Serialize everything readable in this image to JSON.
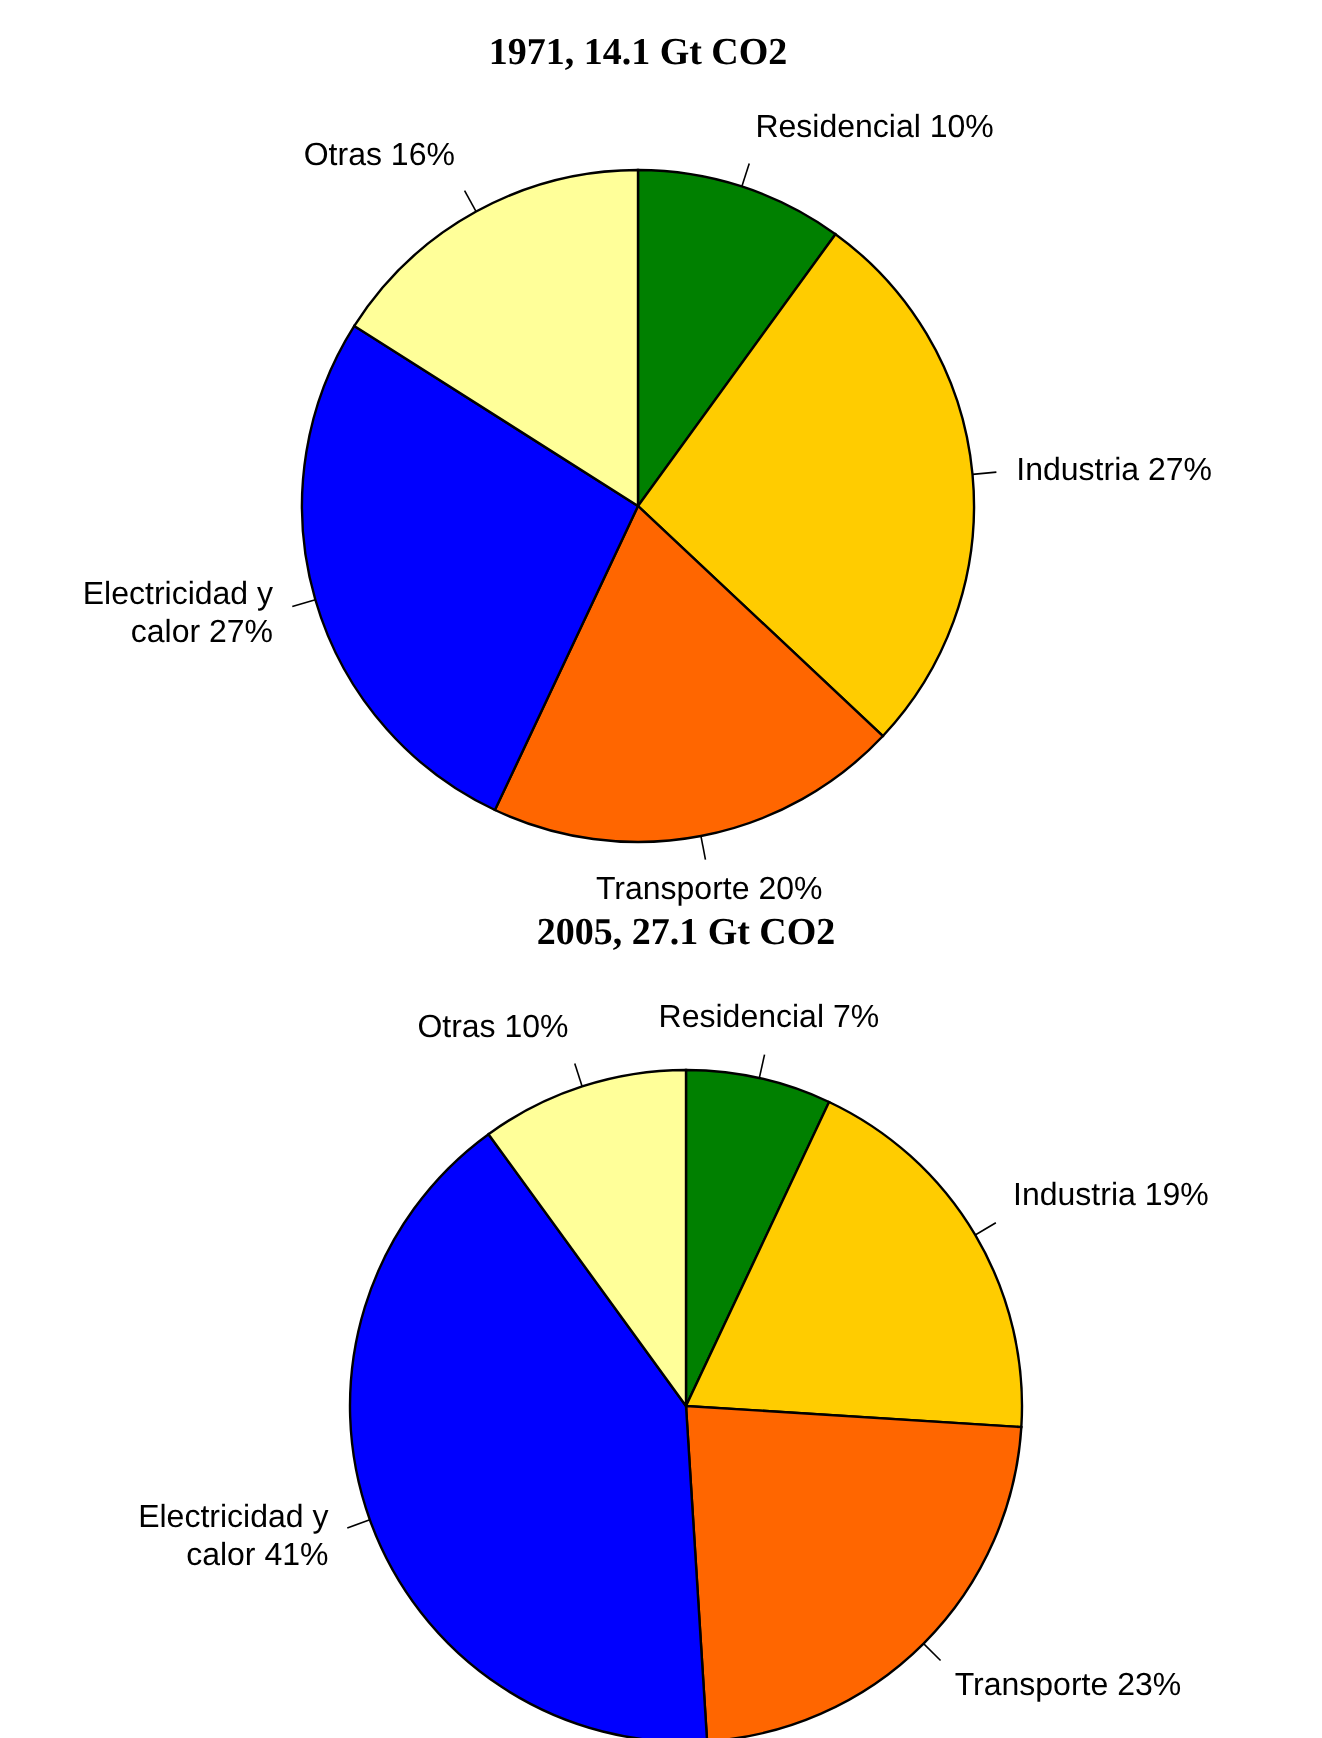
{
  "chart_data": [
    {
      "type": "pie",
      "title": "1971, 14.1 Gt CO2",
      "categories": [
        "Residencial",
        "Industria",
        "Transporte",
        "Electricidad y calor",
        "Otras"
      ],
      "values": [
        10,
        27,
        20,
        27,
        16
      ],
      "colors": [
        "#008000",
        "#ffcc00",
        "#ff6600",
        "#0000ff",
        "#ffff99"
      ],
      "value_labels": [
        "10%",
        "27%",
        "20%",
        "27%",
        "16%"
      ]
    },
    {
      "type": "pie",
      "title": "2005, 27.1 Gt CO2",
      "categories": [
        "Residencial",
        "Industria",
        "Transporte",
        "Electricidad y calor",
        "Otras"
      ],
      "values": [
        7,
        19,
        23,
        41,
        10
      ],
      "colors": [
        "#008000",
        "#ffcc00",
        "#ff6600",
        "#0000ff",
        "#ffff99"
      ],
      "value_labels": [
        "7%",
        "19%",
        "23%",
        "41%",
        "10%"
      ]
    }
  ]
}
